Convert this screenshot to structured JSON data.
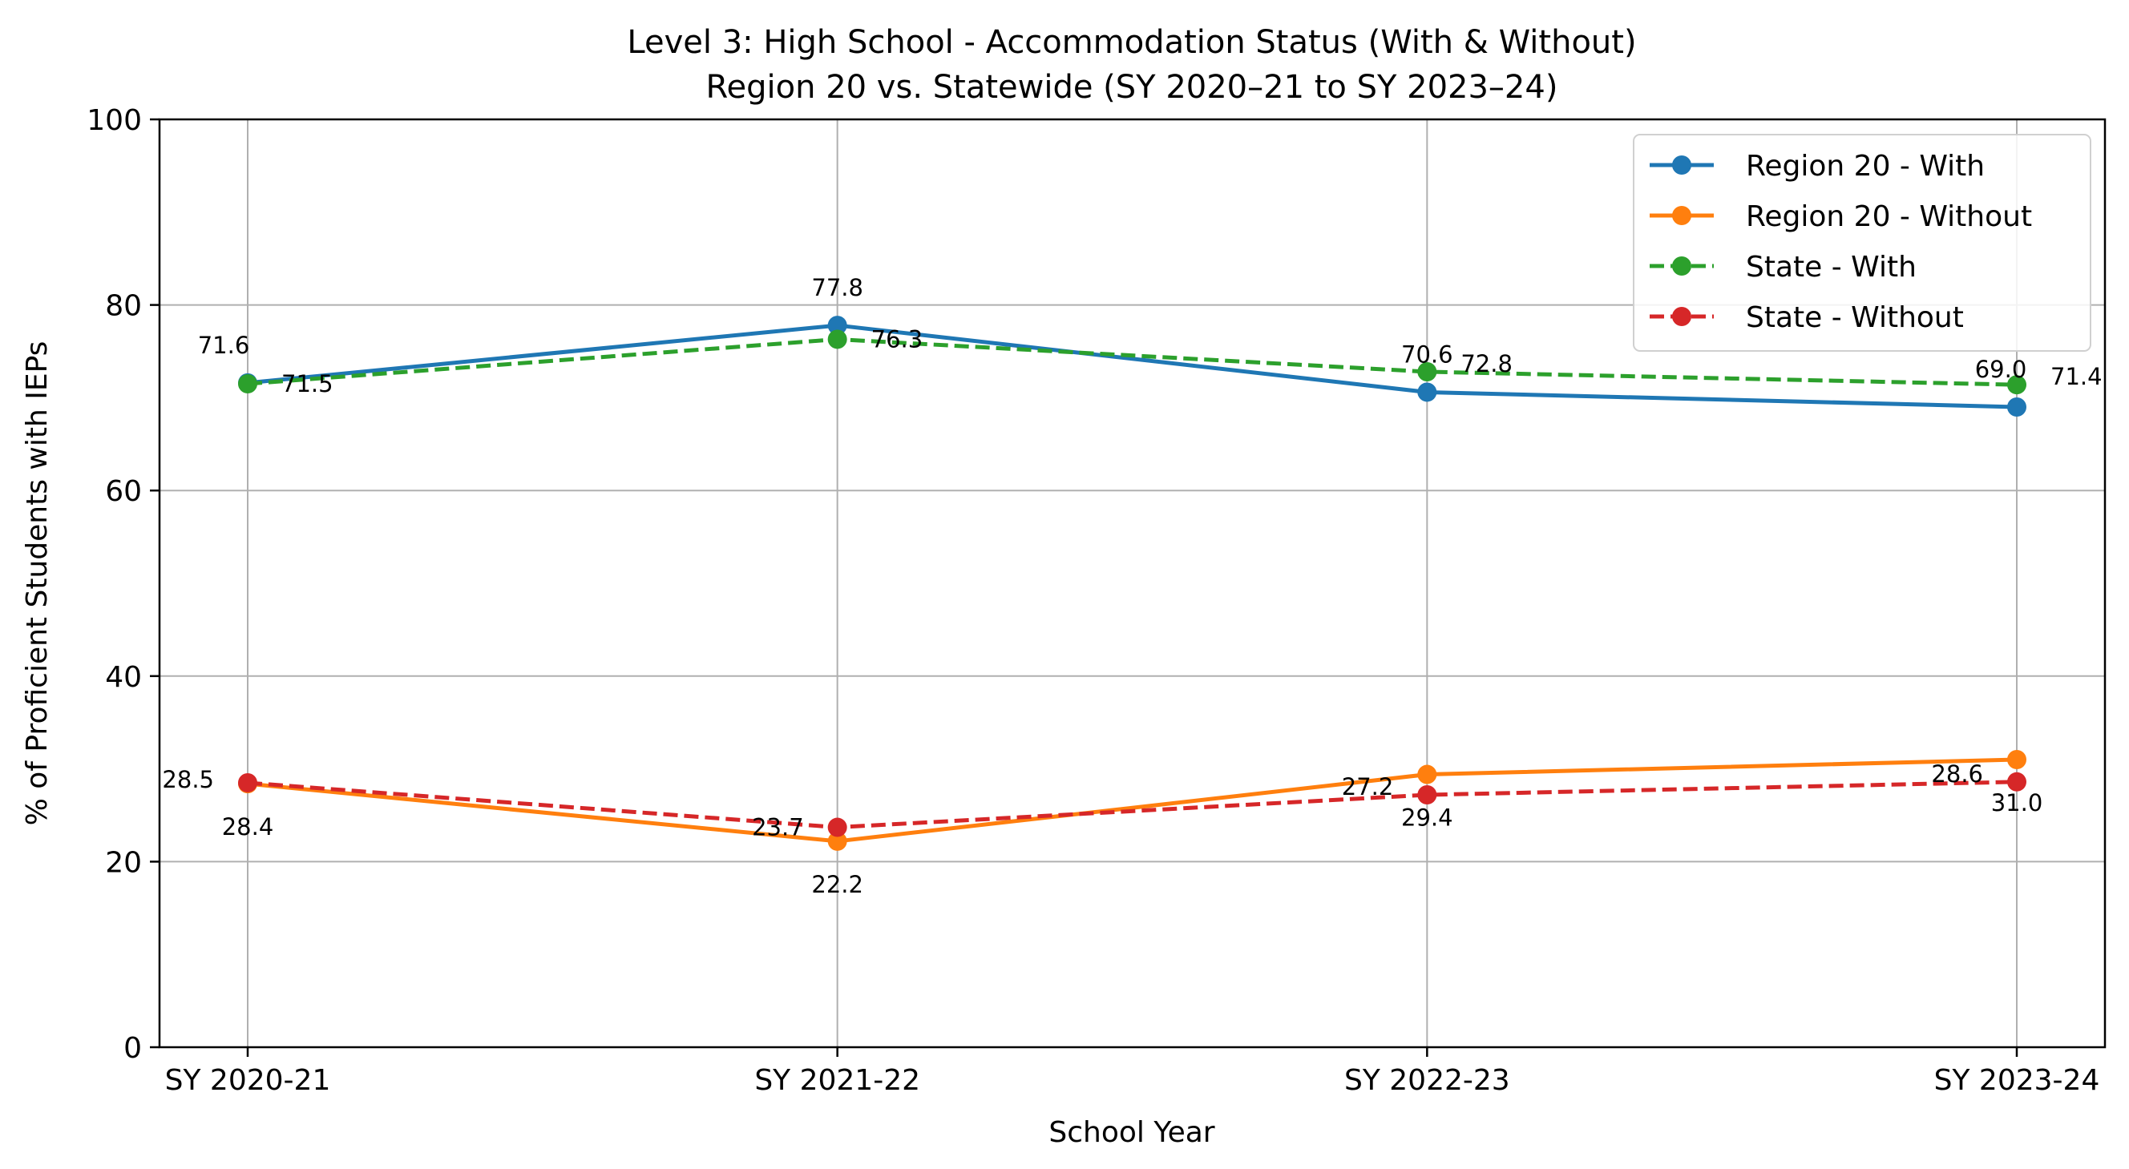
{
  "chart_data": {
    "type": "line",
    "title": "Level 3: High School - Accommodation Status (With & Without)",
    "subtitle": "Region 20 vs. Statewide (SY 2020–21 to SY 2023–24)",
    "xlabel": "School Year",
    "ylabel": "% of Proficient Students with IEPs",
    "categories": [
      "SY 2020-21",
      "SY 2021-22",
      "SY 2022-23",
      "SY 2023-24"
    ],
    "ylim": [
      0,
      100
    ],
    "yticks": [
      "0",
      "20",
      "40",
      "60",
      "80",
      "100"
    ],
    "grid": true,
    "legend_position": "top-right",
    "series": [
      {
        "name": "Region 20 - With",
        "values": [
          71.6,
          77.8,
          70.6,
          69.0
        ],
        "labels": [
          "71.6",
          "77.8",
          "70.6",
          "69.0"
        ],
        "color": "#1f77b4",
        "dash": "solid"
      },
      {
        "name": "Region 20 - Without",
        "values": [
          28.4,
          22.2,
          29.4,
          31.0
        ],
        "labels": [
          "28.4",
          "22.2",
          "29.4",
          "31.0"
        ],
        "color": "#ff7f0e",
        "dash": "solid"
      },
      {
        "name": "State - With",
        "values": [
          71.5,
          76.3,
          72.8,
          71.4
        ],
        "labels": [
          "71.5",
          "76.3",
          "72.8",
          "71.4"
        ],
        "color": "#2ca02c",
        "dash": "dashed"
      },
      {
        "name": "State - Without",
        "values": [
          28.5,
          23.7,
          27.2,
          28.6
        ],
        "labels": [
          "28.5",
          "23.7",
          "27.2",
          "28.6"
        ],
        "color": "#d62728",
        "dash": "dashed"
      }
    ]
  }
}
